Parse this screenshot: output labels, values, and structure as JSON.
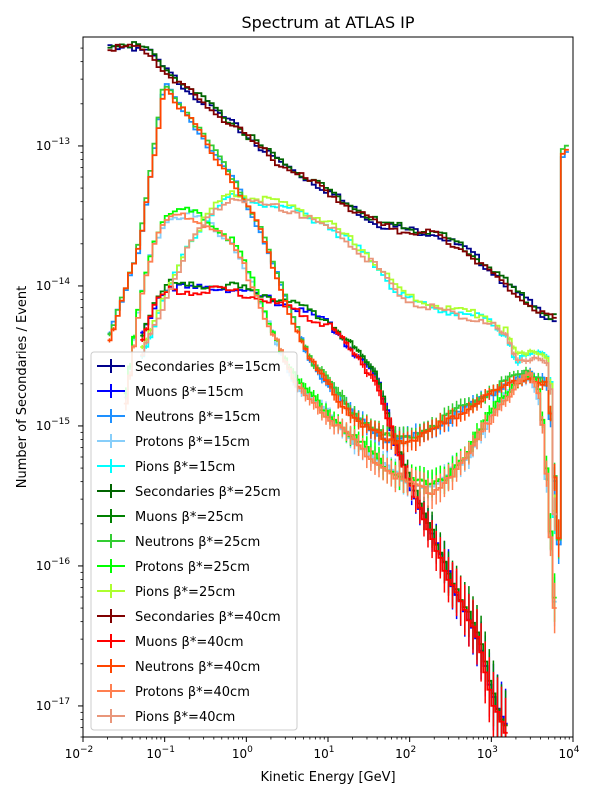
{
  "chart_data": {
    "type": "line",
    "title": "Spectrum at ATLAS IP",
    "xlabel": "Kinetic Energy [GeV]",
    "ylabel": "Number of Secondaries / Event",
    "xscale": "log",
    "yscale": "log",
    "xlim": [
      0.01,
      10000
    ],
    "ylim": [
      6e-18,
      6e-13
    ],
    "grid": false,
    "legend_position": "lower-left",
    "x_ticks": [
      {
        "value": 0.01,
        "base": "10",
        "exp": "−2"
      },
      {
        "value": 0.1,
        "base": "10",
        "exp": "−1"
      },
      {
        "value": 1,
        "base": "10",
        "exp": "0"
      },
      {
        "value": 10,
        "base": "10",
        "exp": "1"
      },
      {
        "value": 100,
        "base": "10",
        "exp": "2"
      },
      {
        "value": 1000,
        "base": "10",
        "exp": "3"
      },
      {
        "value": 10000,
        "base": "10",
        "exp": "4"
      }
    ],
    "y_ticks": [
      {
        "value": 1e-17,
        "base": "10",
        "exp": "−17"
      },
      {
        "value": 1e-16,
        "base": "10",
        "exp": "−16"
      },
      {
        "value": 1e-15,
        "base": "10",
        "exp": "−15"
      },
      {
        "value": 1e-14,
        "base": "10",
        "exp": "−14"
      },
      {
        "value": 1e-13,
        "base": "10",
        "exp": "−13"
      }
    ],
    "series": [
      {
        "name": "Secondaries β*=15cm",
        "color": "#00008b",
        "kind": "secondaries",
        "offset": 0.0,
        "errors": false
      },
      {
        "name": "Muons β*=15cm",
        "color": "#0000ff",
        "kind": "muons",
        "offset": 0.0,
        "errors": true
      },
      {
        "name": "Neutrons β*=15cm",
        "color": "#1e90ff",
        "kind": "neutrons",
        "offset": 0.0,
        "errors": true
      },
      {
        "name": "Protons β*=15cm",
        "color": "#87cefa",
        "kind": "protons",
        "offset": 0.0,
        "errors": true
      },
      {
        "name": "Pions β*=15cm",
        "color": "#00ffff",
        "kind": "pions",
        "offset": 0.0,
        "errors": true
      },
      {
        "name": "Secondaries β*=25cm",
        "color": "#006400",
        "kind": "secondaries",
        "offset": 0.01,
        "errors": false
      },
      {
        "name": "Muons β*=25cm",
        "color": "#008000",
        "kind": "muons",
        "offset": 0.02,
        "errors": true
      },
      {
        "name": "Neutrons β*=25cm",
        "color": "#32cd32",
        "kind": "neutrons",
        "offset": 0.02,
        "errors": true
      },
      {
        "name": "Protons β*=25cm",
        "color": "#00ff00",
        "kind": "protons",
        "offset": 0.02,
        "errors": true
      },
      {
        "name": "Pions β*=25cm",
        "color": "#adff2f",
        "kind": "pions",
        "offset": 0.02,
        "errors": true
      },
      {
        "name": "Secondaries β*=40cm",
        "color": "#800000",
        "kind": "secondaries",
        "offset": -0.01,
        "errors": false
      },
      {
        "name": "Muons β*=40cm",
        "color": "#ff0000",
        "kind": "muons",
        "offset": -0.02,
        "errors": true
      },
      {
        "name": "Neutrons β*=40cm",
        "color": "#ff4500",
        "kind": "neutrons",
        "offset": -0.01,
        "errors": true
      },
      {
        "name": "Protons β*=40cm",
        "color": "#ff7f50",
        "kind": "protons",
        "offset": -0.01,
        "errors": true
      },
      {
        "name": "Pions β*=40cm",
        "color": "#e9967a",
        "kind": "pions",
        "offset": -0.01,
        "errors": true
      }
    ],
    "shapes": {
      "secondaries": [
        [
          0.02,
          5e-13
        ],
        [
          0.03,
          5.2e-13
        ],
        [
          0.05,
          5e-13
        ],
        [
          0.07,
          4.5e-13
        ],
        [
          0.1,
          3.5e-13
        ],
        [
          0.2,
          2.5e-13
        ],
        [
          0.4,
          1.8e-13
        ],
        [
          1,
          1.2e-13
        ],
        [
          2,
          8.5e-14
        ],
        [
          4,
          6.5e-14
        ],
        [
          10,
          4.8e-14
        ],
        [
          20,
          3.6e-14
        ],
        [
          40,
          2.8e-14
        ],
        [
          100,
          2.5e-14
        ],
        [
          200,
          2.4e-14
        ],
        [
          500,
          1.8e-14
        ],
        [
          1000,
          1.3e-14
        ],
        [
          2000,
          9e-15
        ],
        [
          4000,
          6.5e-15
        ],
        [
          6000,
          5.8e-15
        ]
      ],
      "muons": [
        [
          0.05,
          4e-15
        ],
        [
          0.08,
          8e-15
        ],
        [
          0.12,
          1e-14
        ],
        [
          0.2,
          9.5e-15
        ],
        [
          0.5,
          9.8e-15
        ],
        [
          1,
          9e-15
        ],
        [
          2,
          8e-15
        ],
        [
          4,
          7e-15
        ],
        [
          10,
          5.5e-15
        ],
        [
          20,
          3.5e-15
        ],
        [
          40,
          2.2e-15
        ],
        [
          70,
          7e-16
        ],
        [
          100,
          4e-16
        ],
        [
          200,
          1.5e-16
        ],
        [
          400,
          6e-17
        ],
        [
          700,
          3e-17
        ],
        [
          1000,
          1.2e-17
        ],
        [
          1500,
          7e-18
        ]
      ],
      "neutrons": [
        [
          0.02,
          4e-15
        ],
        [
          0.03,
          8e-15
        ],
        [
          0.05,
          2e-14
        ],
        [
          0.1,
          2.8e-13
        ],
        [
          0.2,
          1.6e-13
        ],
        [
          0.4,
          9e-14
        ],
        [
          0.8,
          5e-14
        ],
        [
          1.5,
          2.5e-14
        ],
        [
          3,
          8e-15
        ],
        [
          6,
          3e-15
        ],
        [
          10,
          2e-15
        ],
        [
          20,
          1.2e-15
        ],
        [
          50,
          8e-16
        ],
        [
          100,
          8e-16
        ],
        [
          300,
          1.1e-15
        ],
        [
          800,
          1.6e-15
        ],
        [
          1500,
          2e-15
        ],
        [
          3000,
          2.3e-15
        ],
        [
          5000,
          2e-15
        ],
        [
          7000,
          1e-16
        ],
        [
          7500,
          9e-14
        ],
        [
          8500,
          9.5e-14
        ]
      ],
      "protons": [
        [
          0.03,
          1e-15
        ],
        [
          0.05,
          8e-15
        ],
        [
          0.07,
          1.8e-14
        ],
        [
          0.1,
          3e-14
        ],
        [
          0.2,
          3.3e-14
        ],
        [
          0.4,
          2.6e-14
        ],
        [
          0.7,
          2e-14
        ],
        [
          1,
          1.3e-14
        ],
        [
          2,
          5e-15
        ],
        [
          4,
          2e-15
        ],
        [
          10,
          1.2e-15
        ],
        [
          20,
          8e-16
        ],
        [
          50,
          5e-16
        ],
        [
          100,
          4e-16
        ],
        [
          200,
          3.5e-16
        ],
        [
          500,
          6e-16
        ],
        [
          1000,
          1.2e-15
        ],
        [
          2000,
          2e-15
        ],
        [
          3000,
          2.3e-15
        ],
        [
          4000,
          1.5e-15
        ],
        [
          5000,
          3e-16
        ],
        [
          6000,
          5e-17
        ]
      ],
      "pions": [
        [
          0.05,
          3e-15
        ],
        [
          0.1,
          8e-15
        ],
        [
          0.2,
          2e-14
        ],
        [
          0.4,
          3.5e-14
        ],
        [
          0.7,
          4.4e-14
        ],
        [
          1,
          4.2e-14
        ],
        [
          2,
          3.8e-14
        ],
        [
          4,
          3.5e-14
        ],
        [
          10,
          2.7e-14
        ],
        [
          20,
          2e-14
        ],
        [
          40,
          1.4e-14
        ],
        [
          60,
          1e-14
        ],
        [
          100,
          8e-15
        ],
        [
          300,
          6.5e-15
        ],
        [
          800,
          6e-15
        ],
        [
          1500,
          4.5e-15
        ],
        [
          2000,
          3e-15
        ],
        [
          4000,
          3.2e-15
        ],
        [
          5000,
          3e-15
        ],
        [
          5500,
          1.5e-15
        ],
        [
          6000,
          2e-16
        ]
      ]
    }
  }
}
